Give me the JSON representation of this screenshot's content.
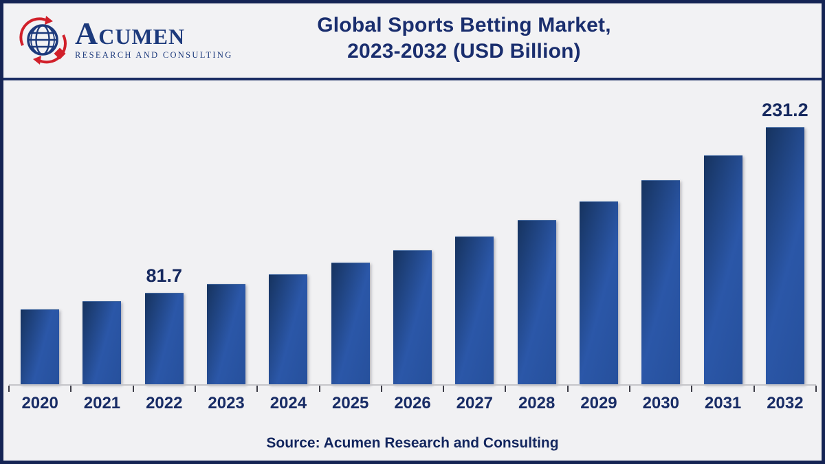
{
  "header": {
    "logo": {
      "name": "Acumen",
      "tagline": "RESEARCH AND CONSULTING",
      "brand_navy": "#1d3a7c",
      "brand_red": "#d1202a"
    },
    "title_line1": "Global Sports Betting Market,",
    "title_line2": "2023-2032 (USD Billion)"
  },
  "chart_data": {
    "type": "bar",
    "title": "Global Sports Betting Market, 2023-2032 (USD Billion)",
    "unit": "USD Billion",
    "categories": [
      "2020",
      "2021",
      "2022",
      "2023",
      "2024",
      "2025",
      "2026",
      "2027",
      "2028",
      "2029",
      "2030",
      "2031",
      "2032"
    ],
    "values": [
      67.2,
      74.6,
      81.7,
      90.1,
      98.3,
      109.0,
      120.3,
      132.8,
      147.4,
      164.3,
      183.4,
      205.6,
      231.2
    ],
    "value_labels_shown": {
      "2022": "81.7",
      "2032": "231.2"
    },
    "ylim": [
      0,
      240
    ],
    "grid": false,
    "legend_position": "none",
    "xlabel": "",
    "ylabel": "",
    "bar_gradient": [
      "#16335f",
      "#2b57a8",
      "#26509c"
    ]
  },
  "footer": {
    "source_label": "Source: Acumen Research and Consulting"
  },
  "colors": {
    "frame_border": "#152454",
    "header_separator": "#1b2d63",
    "background": "#f1f1f3",
    "title_text": "#1a2e6e",
    "axis_line": "#c5c5c9",
    "tick_mark": "#3c3c46",
    "label_text": "#16295f"
  }
}
